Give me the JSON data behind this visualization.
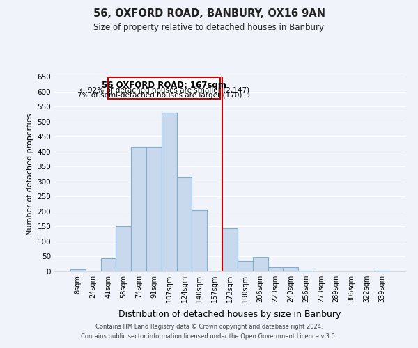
{
  "title": "56, OXFORD ROAD, BANBURY, OX16 9AN",
  "subtitle": "Size of property relative to detached houses in Banbury",
  "xlabel": "Distribution of detached houses by size in Banbury",
  "ylabel": "Number of detached properties",
  "bar_labels": [
    "8sqm",
    "24sqm",
    "41sqm",
    "58sqm",
    "74sqm",
    "91sqm",
    "107sqm",
    "124sqm",
    "140sqm",
    "157sqm",
    "173sqm",
    "190sqm",
    "206sqm",
    "223sqm",
    "240sqm",
    "256sqm",
    "273sqm",
    "289sqm",
    "306sqm",
    "322sqm",
    "339sqm"
  ],
  "bar_values": [
    8,
    0,
    44,
    150,
    415,
    415,
    530,
    313,
    205,
    0,
    144,
    35,
    49,
    14,
    14,
    3,
    0,
    0,
    0,
    0,
    2
  ],
  "bar_color": "#c9d9ed",
  "bar_edge_color": "#7eaed0",
  "vline_x": 9.5,
  "vline_color": "#cc0000",
  "annotation_title": "56 OXFORD ROAD: 167sqm",
  "annotation_line1": "← 92% of detached houses are smaller (2,147)",
  "annotation_line2": "7% of semi-detached houses are larger (170) →",
  "annotation_box_color": "#ffffff",
  "annotation_box_edge": "#cc0000",
  "ylim": [
    0,
    650
  ],
  "yticks": [
    0,
    50,
    100,
    150,
    200,
    250,
    300,
    350,
    400,
    450,
    500,
    550,
    600,
    650
  ],
  "footer1": "Contains HM Land Registry data © Crown copyright and database right 2024.",
  "footer2": "Contains public sector information licensed under the Open Government Licence v.3.0.",
  "bg_color": "#f0f4fa",
  "grid_color": "#ffffff"
}
